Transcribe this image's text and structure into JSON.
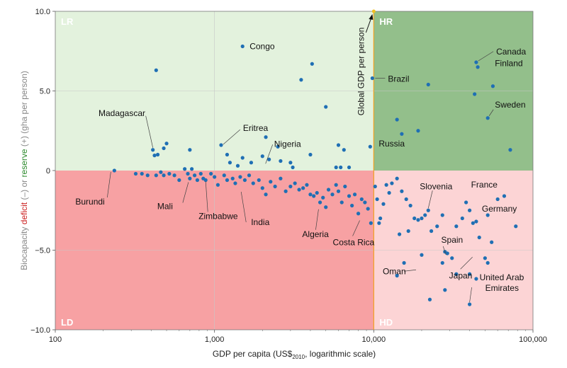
{
  "chart_data": {
    "type": "scatter",
    "xscale": "log",
    "xlim": [
      100,
      100000
    ],
    "ylim": [
      -10,
      10
    ],
    "xticks": [
      {
        "v": 100,
        "t": "100"
      },
      {
        "v": 1000,
        "t": "1,000"
      },
      {
        "v": 10000,
        "t": "10,000"
      },
      {
        "v": 100000,
        "t": "100,000"
      }
    ],
    "yticks": [
      {
        "v": 10,
        "t": "10.0"
      },
      {
        "v": 5,
        "t": "5.0"
      },
      {
        "v": 0,
        "t": "0"
      },
      {
        "v": -5,
        "t": "−5.0"
      },
      {
        "v": -10,
        "t": "−10.0"
      }
    ],
    "xlabel": {
      "pre": "GDP per capita (US$",
      "sub": "2010",
      "post": ", logarithmic scale)"
    },
    "ylabel": [
      {
        "text": "Biocapacity ",
        "color": "#888888"
      },
      {
        "text": "deficit",
        "color": "#cc2222"
      },
      {
        "text": " (–) or ",
        "color": "#888888"
      },
      {
        "text": "reserve",
        "color": "#2e8b2e"
      },
      {
        "text": " (+) (gha per person)",
        "color": "#888888"
      }
    ],
    "global_gdp": 10000,
    "global_gdp_label": "Global GDP per person",
    "quadrants": [
      {
        "name": "LR",
        "x0": 100,
        "x1": 10000,
        "y0": 0,
        "y1": 10,
        "fill": "#e3f2dd",
        "lx": 0.012,
        "ly": 0.96
      },
      {
        "name": "HR",
        "x0": 10000,
        "x1": 100000,
        "y0": 0,
        "y1": 10,
        "fill": "#93bf8b",
        "lx": 0.012,
        "ly": 0.96
      },
      {
        "name": "LD",
        "x0": 100,
        "x1": 10000,
        "y0": -10,
        "y1": 0,
        "fill": "#f7a1a3",
        "lx": 0.012,
        "ly": 0.04
      },
      {
        "name": "HD",
        "x0": 10000,
        "x1": 100000,
        "y0": -10,
        "y1": 0,
        "fill": "#fcd4d5",
        "lx": 0.012,
        "ly": 0.04
      }
    ],
    "point_color": "#1f6fb4",
    "labeled": [
      {
        "name": "Congo",
        "x": 1500,
        "y": 7.8
      },
      {
        "name": "Brazil",
        "x": 10000,
        "y": 5.8
      },
      {
        "name": "Canada",
        "x": 45000,
        "y": 6.9
      },
      {
        "name": "Finland",
        "x": 46000,
        "y": 6.6
      },
      {
        "name": "Sweden",
        "x": 52000,
        "y": 3.3
      },
      {
        "name": "Madagascar",
        "x": 420,
        "y": 1.3
      },
      {
        "name": "Eritrea",
        "x": 1110,
        "y": 1.55
      },
      {
        "name": "Nigeria",
        "x": 2050,
        "y": 0.3
      },
      {
        "name": "Russia",
        "x": 9500,
        "y": 1.2
      },
      {
        "name": "Burundi",
        "x": 235,
        "y": 0.0
      },
      {
        "name": "Mali",
        "x": 700,
        "y": -0.6
      },
      {
        "name": "Zimbabwe",
        "x": 880,
        "y": -0.55
      },
      {
        "name": "India",
        "x": 1500,
        "y": -1.2
      },
      {
        "name": "Algeria",
        "x": 4500,
        "y": -2.3
      },
      {
        "name": "Costa Rica",
        "x": 8000,
        "y": -3.0
      },
      {
        "name": "Oman",
        "x": 19000,
        "y": -6.1
      },
      {
        "name": "Slovenia",
        "x": 22000,
        "y": -2.5
      },
      {
        "name": "France",
        "x": 40000,
        "y": -2.0
      },
      {
        "name": "Spain",
        "x": 30000,
        "y": -5.2
      },
      {
        "name": "Germany",
        "x": 44000,
        "y": -3.2
      },
      {
        "name": "Japan",
        "x": 43000,
        "y": -5.3
      },
      {
        "name": "United Arab Emirates",
        "x": 40000,
        "y": -8.4
      }
    ],
    "points": [
      [
        430,
        6.3
      ],
      [
        1500,
        7.8
      ],
      [
        3500,
        5.7
      ],
      [
        4100,
        6.7
      ],
      [
        5000,
        4.0
      ],
      [
        9800,
        5.8
      ],
      [
        22000,
        5.4
      ],
      [
        44000,
        6.8
      ],
      [
        45000,
        6.5
      ],
      [
        56000,
        5.3
      ],
      [
        43000,
        4.8
      ],
      [
        52000,
        3.3
      ],
      [
        72000,
        1.3
      ],
      [
        14000,
        3.2
      ],
      [
        15000,
        2.3
      ],
      [
        19000,
        2.5
      ],
      [
        9500,
        1.5
      ],
      [
        2100,
        2.1
      ],
      [
        2500,
        1.5
      ],
      [
        2200,
        0.7
      ],
      [
        1100,
        1.6
      ],
      [
        1200,
        1.0
      ],
      [
        1250,
        0.5
      ],
      [
        1400,
        0.3
      ],
      [
        1500,
        0.8
      ],
      [
        1700,
        0.5
      ],
      [
        2000,
        0.9
      ],
      [
        2600,
        0.6
      ],
      [
        3000,
        0.5
      ],
      [
        3100,
        0.2
      ],
      [
        4000,
        1.0
      ],
      [
        6000,
        1.6
      ],
      [
        6500,
        1.3
      ],
      [
        7000,
        0.2
      ],
      [
        6200,
        0.2
      ],
      [
        5800,
        0.2
      ],
      [
        410,
        1.3
      ],
      [
        440,
        1.0
      ],
      [
        480,
        1.4
      ],
      [
        500,
        1.7
      ],
      [
        700,
        1.3
      ],
      [
        420,
        0.95
      ],
      [
        235,
        0.0
      ],
      [
        320,
        -0.2
      ],
      [
        350,
        -0.2
      ],
      [
        380,
        -0.3
      ],
      [
        430,
        -0.3
      ],
      [
        460,
        -0.1
      ],
      [
        480,
        -0.3
      ],
      [
        520,
        -0.2
      ],
      [
        560,
        -0.3
      ],
      [
        600,
        -0.6
      ],
      [
        650,
        0.1
      ],
      [
        680,
        -0.2
      ],
      [
        700,
        -0.5
      ],
      [
        720,
        0.1
      ],
      [
        750,
        -0.3
      ],
      [
        780,
        -0.6
      ],
      [
        820,
        -0.2
      ],
      [
        850,
        -0.5
      ],
      [
        880,
        -0.6
      ],
      [
        950,
        -0.2
      ],
      [
        1000,
        -0.4
      ],
      [
        1050,
        -0.9
      ],
      [
        1150,
        -0.3
      ],
      [
        1200,
        -0.6
      ],
      [
        1300,
        -0.5
      ],
      [
        1350,
        -0.8
      ],
      [
        1450,
        -0.4
      ],
      [
        1550,
        -0.6
      ],
      [
        1650,
        -0.3
      ],
      [
        1750,
        -0.8
      ],
      [
        1900,
        -0.6
      ],
      [
        2000,
        -1.1
      ],
      [
        2100,
        -1.5
      ],
      [
        2250,
        -0.7
      ],
      [
        2400,
        -1.0
      ],
      [
        2600,
        -0.5
      ],
      [
        2800,
        -1.3
      ],
      [
        3000,
        -1.0
      ],
      [
        3200,
        -0.8
      ],
      [
        3400,
        -1.2
      ],
      [
        3600,
        -1.1
      ],
      [
        3800,
        -0.9
      ],
      [
        4000,
        -1.5
      ],
      [
        4200,
        -1.6
      ],
      [
        4400,
        -1.4
      ],
      [
        4600,
        -2.0
      ],
      [
        4800,
        -1.7
      ],
      [
        5000,
        -2.3
      ],
      [
        5200,
        -1.2
      ],
      [
        5500,
        -1.5
      ],
      [
        5800,
        -0.9
      ],
      [
        6000,
        -1.3
      ],
      [
        6300,
        -2.0
      ],
      [
        6600,
        -1.0
      ],
      [
        7000,
        -1.6
      ],
      [
        7300,
        -2.2
      ],
      [
        7600,
        -1.5
      ],
      [
        8000,
        -2.7
      ],
      [
        8400,
        -1.8
      ],
      [
        8800,
        -2.0
      ],
      [
        9200,
        -2.4
      ],
      [
        9600,
        -3.3
      ],
      [
        10200,
        -1.0
      ],
      [
        10500,
        -1.8
      ],
      [
        11000,
        -3.0
      ],
      [
        12000,
        -0.9
      ],
      [
        13000,
        -0.8
      ],
      [
        14000,
        -0.5
      ],
      [
        15000,
        -1.3
      ],
      [
        16000,
        -1.8
      ],
      [
        17000,
        -2.2
      ],
      [
        18000,
        -3.0
      ],
      [
        19000,
        -3.1
      ],
      [
        20000,
        -3.0
      ],
      [
        21000,
        -2.8
      ],
      [
        22000,
        -2.5
      ],
      [
        23000,
        -3.8
      ],
      [
        25000,
        -3.5
      ],
      [
        27000,
        -2.8
      ],
      [
        29000,
        -5.2
      ],
      [
        31000,
        -5.5
      ],
      [
        33000,
        -3.5
      ],
      [
        36000,
        -3.0
      ],
      [
        38000,
        -2.0
      ],
      [
        40000,
        -2.5
      ],
      [
        42000,
        -3.3
      ],
      [
        44000,
        -3.2
      ],
      [
        46000,
        -4.2
      ],
      [
        50000,
        -5.5
      ],
      [
        52000,
        -2.8
      ],
      [
        55000,
        -4.5
      ],
      [
        60000,
        -1.8
      ],
      [
        66000,
        -1.6
      ],
      [
        78000,
        -3.5
      ],
      [
        10800,
        -3.3
      ],
      [
        11500,
        -2.1
      ],
      [
        14000,
        -6.6
      ],
      [
        14500,
        -4.0
      ],
      [
        15500,
        -5.8
      ],
      [
        16500,
        -3.8
      ],
      [
        20000,
        -5.3
      ],
      [
        27000,
        -5.8
      ],
      [
        28000,
        -7.5
      ],
      [
        33000,
        -6.5
      ],
      [
        40000,
        -6.5
      ],
      [
        44000,
        -6.8
      ],
      [
        52000,
        -5.8
      ],
      [
        22500,
        -8.1
      ],
      [
        40000,
        -8.4
      ],
      [
        28000,
        -5.1
      ],
      [
        12500,
        -1.4
      ]
    ]
  }
}
